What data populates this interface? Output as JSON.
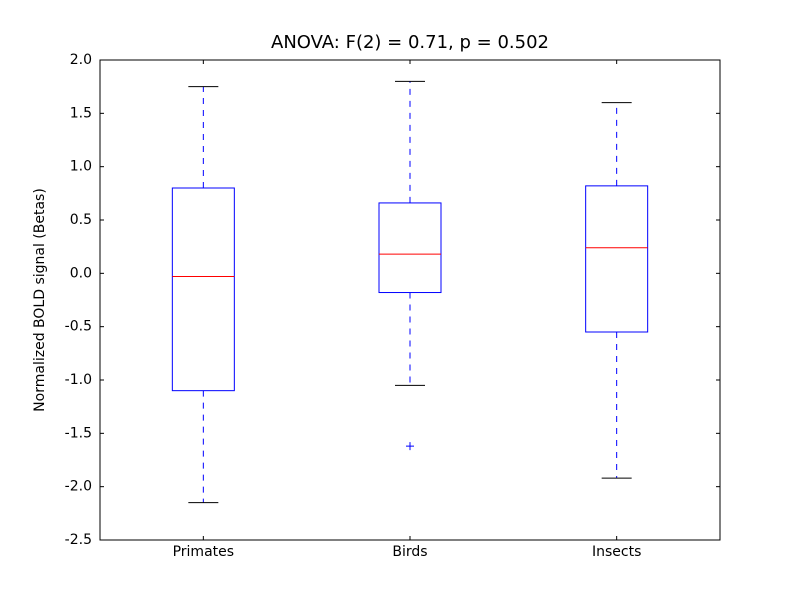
{
  "chart_data": {
    "type": "box",
    "title": "ANOVA: F(2) = 0.71, p = 0.502",
    "y_label": "Normalized BOLD signal (Betas)",
    "categories": [
      "Primates",
      "Birds",
      "Insects"
    ],
    "boxes": [
      {
        "whislo": -2.15,
        "q1": -1.1,
        "med": -0.03,
        "q3": 0.8,
        "whishi": 1.75,
        "fliers": []
      },
      {
        "whislo": -1.05,
        "q1": -0.18,
        "med": 0.18,
        "q3": 0.66,
        "whishi": 1.8,
        "fliers": [
          -1.62
        ]
      },
      {
        "whislo": -1.92,
        "q1": -0.55,
        "med": 0.24,
        "q3": 0.82,
        "whishi": 1.6,
        "fliers": []
      }
    ],
    "box_color": "#0000ff",
    "median_color": "#ff0000",
    "cap_color": "#000000",
    "ylim": [
      -2.5,
      2.0
    ],
    "yticks": [
      {
        "value": -2.5,
        "label": "-2.5"
      },
      {
        "value": -2.0,
        "label": "-2.0"
      },
      {
        "value": -1.5,
        "label": "-1.5"
      },
      {
        "value": -1.0,
        "label": "-1.0"
      },
      {
        "value": -0.5,
        "label": "-0.5"
      },
      {
        "value": 0.0,
        "label": "0.0"
      },
      {
        "value": 0.5,
        "label": "0.5"
      },
      {
        "value": 1.0,
        "label": "1.0"
      },
      {
        "value": 1.5,
        "label": "1.5"
      },
      {
        "value": 2.0,
        "label": "2.0"
      }
    ],
    "grid": false
  }
}
